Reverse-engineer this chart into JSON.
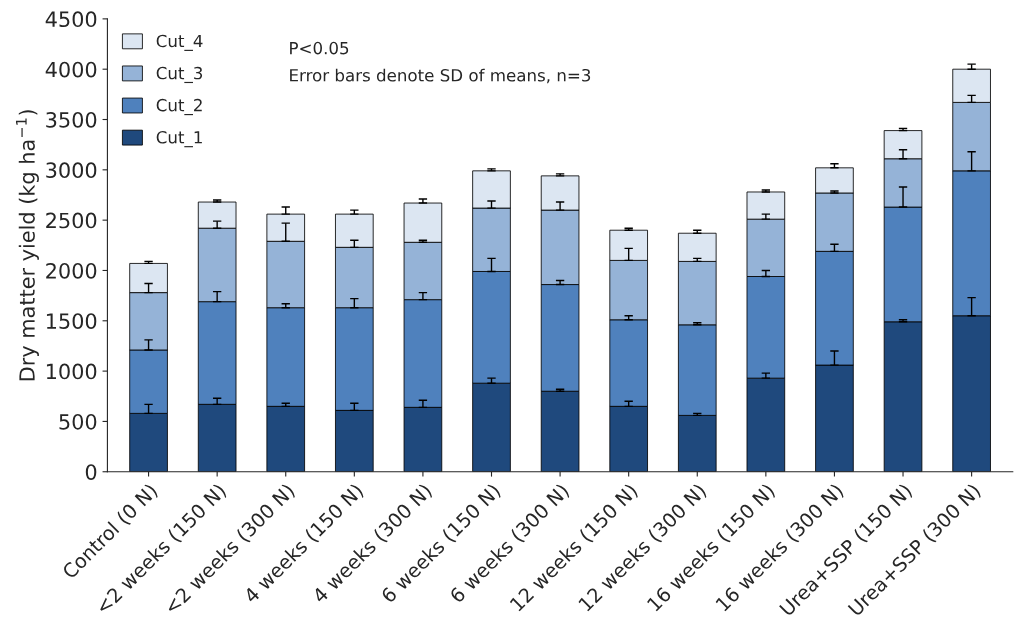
{
  "chart_data": {
    "type": "bar",
    "stacked": true,
    "ylabel": "Dry matter yield (kg ha$^{−1}$)",
    "categories": [
      "Control (0 N)",
      "<2 weeks (150 N)",
      "<2 weeks (300 N)",
      "4 weeks (150 N)",
      "4 weeks (300 N)",
      "6 weeks (150 N)",
      "6 weeks (300 N)",
      "12 weeks (150 N)",
      "12 weeks (300 N)",
      "16 weeks (150 N)",
      "16 weeks (300 N)",
      "Urea+SSP (150 N)",
      "Urea+SSP (300 N)"
    ],
    "series": [
      {
        "name": "Cut_1",
        "color": "#1f497d",
        "values": [
          580,
          670,
          650,
          610,
          640,
          880,
          800,
          650,
          560,
          930,
          1060,
          1490,
          1550
        ],
        "errors": [
          90,
          60,
          30,
          70,
          70,
          50,
          20,
          50,
          20,
          50,
          140,
          20,
          180
        ]
      },
      {
        "name": "Cut_2",
        "color": "#4f81bd",
        "values": [
          630,
          1020,
          980,
          1020,
          1070,
          1110,
          1060,
          860,
          900,
          1010,
          1130,
          1140,
          1440
        ],
        "errors": [
          100,
          100,
          40,
          90,
          70,
          130,
          40,
          40,
          20,
          60,
          70,
          200,
          190
        ]
      },
      {
        "name": "Cut_3",
        "color": "#95b3d7",
        "values": [
          570,
          730,
          660,
          600,
          570,
          630,
          740,
          590,
          630,
          570,
          580,
          480,
          680
        ],
        "errors": [
          90,
          70,
          180,
          70,
          20,
          70,
          80,
          120,
          30,
          50,
          20,
          90,
          70
        ]
      },
      {
        "name": "Cut_4",
        "color": "#dce6f2",
        "values": [
          290,
          260,
          270,
          330,
          390,
          370,
          340,
          300,
          280,
          270,
          250,
          280,
          330
        ],
        "errors": [
          20,
          20,
          70,
          40,
          40,
          20,
          20,
          20,
          30,
          20,
          40,
          20,
          50
        ]
      }
    ],
    "ylim": [
      0,
      4500
    ],
    "yticks": [
      0,
      500,
      1000,
      1500,
      2000,
      2500,
      3000,
      3500,
      4000,
      4500
    ],
    "grid": false,
    "legend": "top left",
    "annotations": [
      "P<0.05",
      "Error bars denote SD of means, n=3"
    ]
  }
}
